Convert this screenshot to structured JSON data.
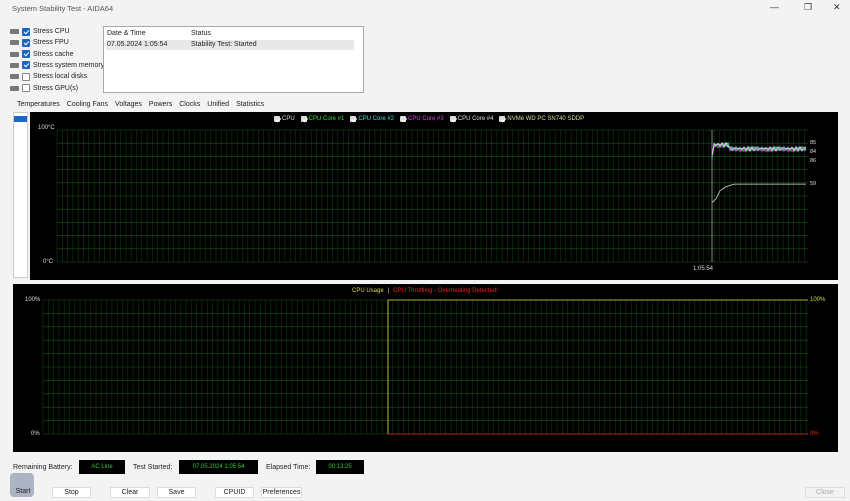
{
  "window": {
    "title": "System Stability Test - AIDA64",
    "minimize": "—",
    "maximize": "❐",
    "close": "✕"
  },
  "options": [
    {
      "label": "Stress CPU",
      "checked": true,
      "icon": "cpu-icon"
    },
    {
      "label": "Stress FPU",
      "checked": true,
      "icon": "fpu-icon"
    },
    {
      "label": "Stress cache",
      "checked": true,
      "icon": "cache-icon"
    },
    {
      "label": "Stress system memory",
      "checked": true,
      "icon": "memory-icon"
    },
    {
      "label": "Stress local disks",
      "checked": false,
      "icon": "disk-icon"
    },
    {
      "label": "Stress GPU(s)",
      "checked": false,
      "icon": "gpu-icon"
    }
  ],
  "log": {
    "headers": [
      "Date & Time",
      "Status"
    ],
    "rows": [
      [
        "07.05.2024 1:05:54",
        "Stability Test: Started"
      ]
    ]
  },
  "tabs": [
    "Temperatures",
    "Cooling Fans",
    "Voltages",
    "Powers",
    "Clocks",
    "Unified",
    "Statistics"
  ],
  "temp_chart": {
    "ymax_label": "100°C",
    "ymin_label": "0°C",
    "time_label": "1:05:54",
    "legend": [
      {
        "label": "CPU",
        "color": "#dddddd"
      },
      {
        "label": "CPU Core #1",
        "color": "#33dd33"
      },
      {
        "label": "CPU Core #2",
        "color": "#44dddd"
      },
      {
        "label": "CPU Core #3",
        "color": "#dd44dd"
      },
      {
        "label": "CPU Core #4",
        "color": "#dddddd"
      },
      {
        "label": "NVMe WD PC SN740 SDDP",
        "color": "#dddd99"
      }
    ],
    "end_labels": [
      "85",
      "84",
      "86",
      "59"
    ]
  },
  "usage_chart": {
    "title_usage": "CPU Usage",
    "separator": "|",
    "title_throttle": "CPU Throttling - Overheating Detected!",
    "left_top": "100%",
    "left_bottom": "0%",
    "right_top": "100%",
    "right_bottom": "0%",
    "usage_color": "#dddd33",
    "throttle_color": "#ee2222"
  },
  "status": {
    "battery_label": "Remaining Battery:",
    "battery": "AC Line",
    "started_label": "Test Started:",
    "started": "07.05.2024 1:05:54",
    "elapsed_label": "Elapsed Time:",
    "elapsed": "00:13:25"
  },
  "buttons": {
    "start": "Start",
    "stop": "Stop",
    "clear": "Clear",
    "save": "Save",
    "cpuid": "CPUID",
    "preferences": "Preferences",
    "close": "Close"
  }
}
